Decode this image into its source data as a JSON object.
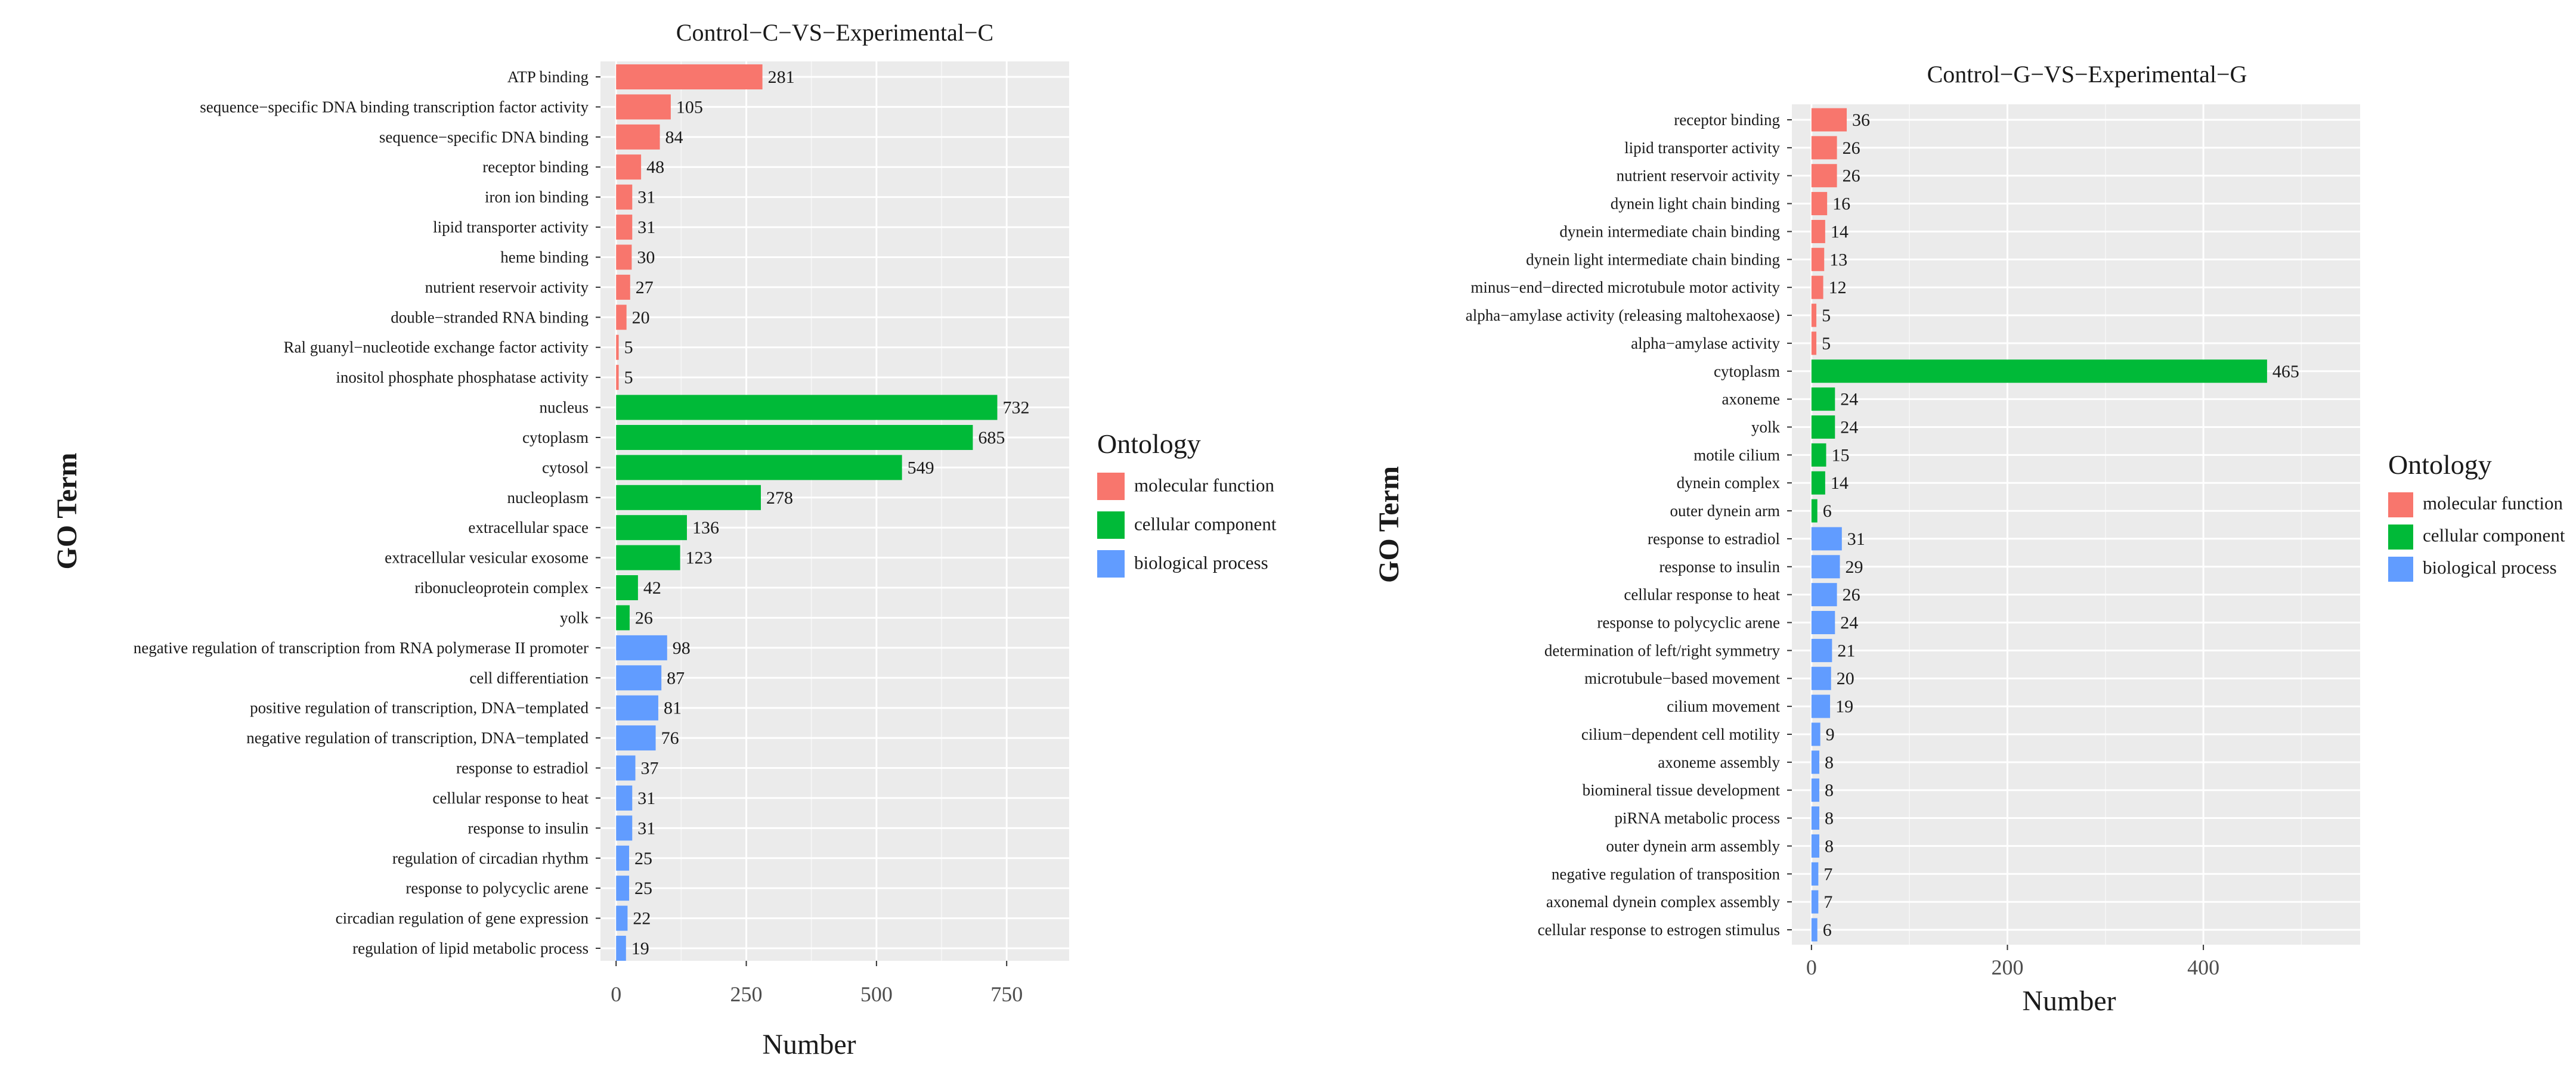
{
  "colors": {
    "molecular_function": "#F8766D",
    "cellular_component": "#00BA38",
    "biological_process": "#619CFF",
    "panel_background": "#EBEBEB",
    "gridline": "#FFFFFF"
  },
  "chart_data": [
    {
      "type": "bar",
      "orientation": "horizontal",
      "title": "Control−C−VS−Experimental−C",
      "xlabel": "Number",
      "ylabel": "GO Term",
      "xlim": [
        -30,
        870
      ],
      "xticks": [
        0,
        250,
        500,
        750
      ],
      "xtick_labels": [
        "0",
        "250",
        "500",
        "750"
      ],
      "grid": true,
      "legend_title": "Ontology",
      "legend_position": "right",
      "legend_entries": [
        {
          "key": "molecular_function",
          "label": "molecular function"
        },
        {
          "key": "cellular_component",
          "label": "cellular component"
        },
        {
          "key": "biological_process",
          "label": "biological process"
        }
      ],
      "bars": [
        {
          "term": "ATP binding",
          "value": 281,
          "value_label": "281",
          "ontology": "molecular_function"
        },
        {
          "term": "sequence−specific DNA binding transcription factor activity",
          "value": 105,
          "value_label": "105",
          "ontology": "molecular_function"
        },
        {
          "term": "sequence−specific DNA binding",
          "value": 84,
          "value_label": "84",
          "ontology": "molecular_function"
        },
        {
          "term": "receptor binding",
          "value": 48,
          "value_label": "48",
          "ontology": "molecular_function"
        },
        {
          "term": "iron ion binding",
          "value": 31,
          "value_label": "31",
          "ontology": "molecular_function"
        },
        {
          "term": "lipid transporter activity",
          "value": 31,
          "value_label": "31",
          "ontology": "molecular_function"
        },
        {
          "term": "heme binding",
          "value": 30,
          "value_label": "30",
          "ontology": "molecular_function"
        },
        {
          "term": "nutrient reservoir activity",
          "value": 27,
          "value_label": "27",
          "ontology": "molecular_function"
        },
        {
          "term": "double−stranded RNA binding",
          "value": 20,
          "value_label": "20",
          "ontology": "molecular_function"
        },
        {
          "term": "Ral guanyl−nucleotide exchange factor activity",
          "value": 5,
          "value_label": "5",
          "ontology": "molecular_function"
        },
        {
          "term": "inositol phosphate phosphatase activity",
          "value": 5,
          "value_label": "5",
          "ontology": "molecular_function"
        },
        {
          "term": "nucleus",
          "value": 732,
          "value_label": "732",
          "ontology": "cellular_component"
        },
        {
          "term": "cytoplasm",
          "value": 685,
          "value_label": "685",
          "ontology": "cellular_component"
        },
        {
          "term": "cytosol",
          "value": 549,
          "value_label": "549",
          "ontology": "cellular_component"
        },
        {
          "term": "nucleoplasm",
          "value": 278,
          "value_label": "278",
          "ontology": "cellular_component"
        },
        {
          "term": "extracellular space",
          "value": 136,
          "value_label": "136",
          "ontology": "cellular_component"
        },
        {
          "term": "extracellular vesicular exosome",
          "value": 123,
          "value_label": "123",
          "ontology": "cellular_component"
        },
        {
          "term": "ribonucleoprotein complex",
          "value": 42,
          "value_label": "42",
          "ontology": "cellular_component"
        },
        {
          "term": "yolk",
          "value": 26,
          "value_label": "26",
          "ontology": "cellular_component"
        },
        {
          "term": "negative regulation of transcription from RNA polymerase II promoter",
          "value": 98,
          "value_label": "98",
          "ontology": "biological_process"
        },
        {
          "term": "cell differentiation",
          "value": 87,
          "value_label": "87",
          "ontology": "biological_process"
        },
        {
          "term": "positive regulation of transcription, DNA−templated",
          "value": 81,
          "value_label": "81",
          "ontology": "biological_process"
        },
        {
          "term": "negative regulation of transcription, DNA−templated",
          "value": 76,
          "value_label": "76",
          "ontology": "biological_process"
        },
        {
          "term": "response to estradiol",
          "value": 37,
          "value_label": "37",
          "ontology": "biological_process"
        },
        {
          "term": "cellular response to heat",
          "value": 31,
          "value_label": "31",
          "ontology": "biological_process"
        },
        {
          "term": "response to insulin",
          "value": 31,
          "value_label": "31",
          "ontology": "biological_process"
        },
        {
          "term": "regulation of circadian rhythm",
          "value": 25,
          "value_label": "25",
          "ontology": "biological_process"
        },
        {
          "term": "response to polycyclic arene",
          "value": 25,
          "value_label": "25",
          "ontology": "biological_process"
        },
        {
          "term": "circadian regulation of gene expression",
          "value": 22,
          "value_label": "22",
          "ontology": "biological_process"
        },
        {
          "term": "regulation of lipid metabolic process",
          "value": 19,
          "value_label": "19",
          "ontology": "biological_process"
        }
      ]
    },
    {
      "type": "bar",
      "orientation": "horizontal",
      "title": "Control−G−VS−Experimental−G",
      "xlabel": "Number",
      "ylabel": "GO Term",
      "xlim": [
        -20,
        560
      ],
      "xticks": [
        0,
        200,
        400
      ],
      "xtick_labels": [
        "0",
        "200",
        "400"
      ],
      "grid": true,
      "legend_title": "Ontology",
      "legend_position": "right",
      "legend_entries": [
        {
          "key": "molecular_function",
          "label": "molecular function"
        },
        {
          "key": "cellular_component",
          "label": "cellular component"
        },
        {
          "key": "biological_process",
          "label": "biological process"
        }
      ],
      "bars": [
        {
          "term": "receptor binding",
          "value": 36,
          "value_label": "36",
          "ontology": "molecular_function"
        },
        {
          "term": "lipid transporter activity",
          "value": 26,
          "value_label": "26",
          "ontology": "molecular_function"
        },
        {
          "term": "nutrient reservoir activity",
          "value": 26,
          "value_label": "26",
          "ontology": "molecular_function"
        },
        {
          "term": "dynein light chain binding",
          "value": 16,
          "value_label": "16",
          "ontology": "molecular_function"
        },
        {
          "term": "dynein intermediate chain binding",
          "value": 14,
          "value_label": "14",
          "ontology": "molecular_function"
        },
        {
          "term": "dynein light intermediate chain binding",
          "value": 13,
          "value_label": "13",
          "ontology": "molecular_function"
        },
        {
          "term": "minus−end−directed microtubule motor activity",
          "value": 12,
          "value_label": "12",
          "ontology": "molecular_function"
        },
        {
          "term": "alpha−amylase activity (releasing maltohexaose)",
          "value": 5,
          "value_label": "5",
          "ontology": "molecular_function"
        },
        {
          "term": "alpha−amylase activity",
          "value": 5,
          "value_label": "5",
          "ontology": "molecular_function"
        },
        {
          "term": "cytoplasm",
          "value": 465,
          "value_label": "465",
          "ontology": "cellular_component"
        },
        {
          "term": "axoneme",
          "value": 24,
          "value_label": "24",
          "ontology": "cellular_component"
        },
        {
          "term": "yolk",
          "value": 24,
          "value_label": "24",
          "ontology": "cellular_component"
        },
        {
          "term": "motile cilium",
          "value": 15,
          "value_label": "15",
          "ontology": "cellular_component"
        },
        {
          "term": "dynein complex",
          "value": 14,
          "value_label": "14",
          "ontology": "cellular_component"
        },
        {
          "term": "outer dynein arm",
          "value": 6,
          "value_label": "6",
          "ontology": "cellular_component"
        },
        {
          "term": "response to estradiol",
          "value": 31,
          "value_label": "31",
          "ontology": "biological_process"
        },
        {
          "term": "response to insulin",
          "value": 29,
          "value_label": "29",
          "ontology": "biological_process"
        },
        {
          "term": "cellular response to heat",
          "value": 26,
          "value_label": "26",
          "ontology": "biological_process"
        },
        {
          "term": "response to polycyclic arene",
          "value": 24,
          "value_label": "24",
          "ontology": "biological_process"
        },
        {
          "term": "determination of left/right symmetry",
          "value": 21,
          "value_label": "21",
          "ontology": "biological_process"
        },
        {
          "term": "microtubule−based movement",
          "value": 20,
          "value_label": "20",
          "ontology": "biological_process"
        },
        {
          "term": "cilium movement",
          "value": 19,
          "value_label": "19",
          "ontology": "biological_process"
        },
        {
          "term": "cilium−dependent cell motility",
          "value": 9,
          "value_label": "9",
          "ontology": "biological_process"
        },
        {
          "term": "axoneme assembly",
          "value": 8,
          "value_label": "8",
          "ontology": "biological_process"
        },
        {
          "term": "biomineral tissue development",
          "value": 8,
          "value_label": "8",
          "ontology": "biological_process"
        },
        {
          "term": "piRNA metabolic process",
          "value": 8,
          "value_label": "8",
          "ontology": "biological_process"
        },
        {
          "term": "outer dynein arm assembly",
          "value": 8,
          "value_label": "8",
          "ontology": "biological_process"
        },
        {
          "term": "negative regulation of transposition",
          "value": 7,
          "value_label": "7",
          "ontology": "biological_process"
        },
        {
          "term": "axonemal dynein complex assembly",
          "value": 7,
          "value_label": "7",
          "ontology": "biological_process"
        },
        {
          "term": "cellular response to estrogen stimulus",
          "value": 6,
          "value_label": "6",
          "ontology": "biological_process"
        }
      ]
    }
  ]
}
